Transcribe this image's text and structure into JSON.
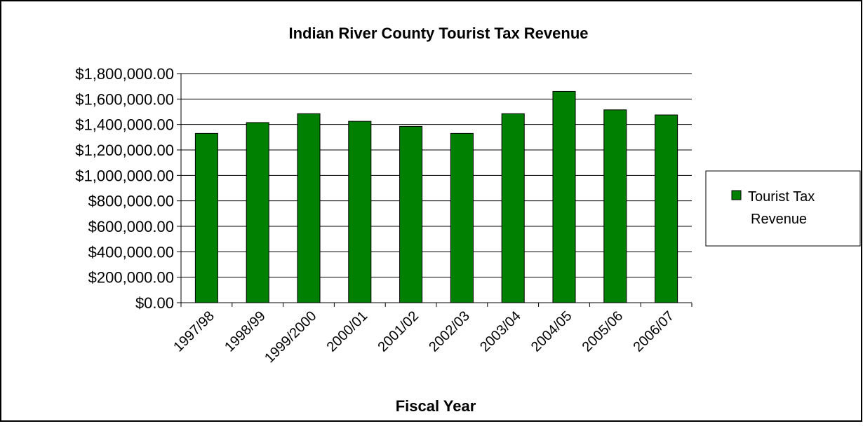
{
  "chart_data": {
    "type": "bar",
    "title": "Indian River County Tourist Tax Revenue",
    "xlabel": "Fiscal Year",
    "ylabel": "",
    "categories": [
      "1997/98",
      "1998/99",
      "1999/2000",
      "2000/01",
      "2001/02",
      "2002/03",
      "2003/04",
      "2004/05",
      "2005/06",
      "2006/07"
    ],
    "series": [
      {
        "name": "Tourist Tax Revenue",
        "values": [
          1330000,
          1415000,
          1485000,
          1425000,
          1385000,
          1330000,
          1485000,
          1660000,
          1515000,
          1475000
        ],
        "color": "#008000"
      }
    ],
    "ylim": [
      0,
      1800000
    ],
    "yticks": [
      "$0.00",
      "$200,000.00",
      "$400,000.00",
      "$600,000.00",
      "$800,000.00",
      "$1,000,000.00",
      "$1,200,000.00",
      "$1,400,000.00",
      "$1,600,000.00",
      "$1,800,000.00"
    ],
    "legend": {
      "position": "right",
      "lines": [
        "Tourist Tax",
        "Revenue"
      ]
    },
    "grid": true
  }
}
